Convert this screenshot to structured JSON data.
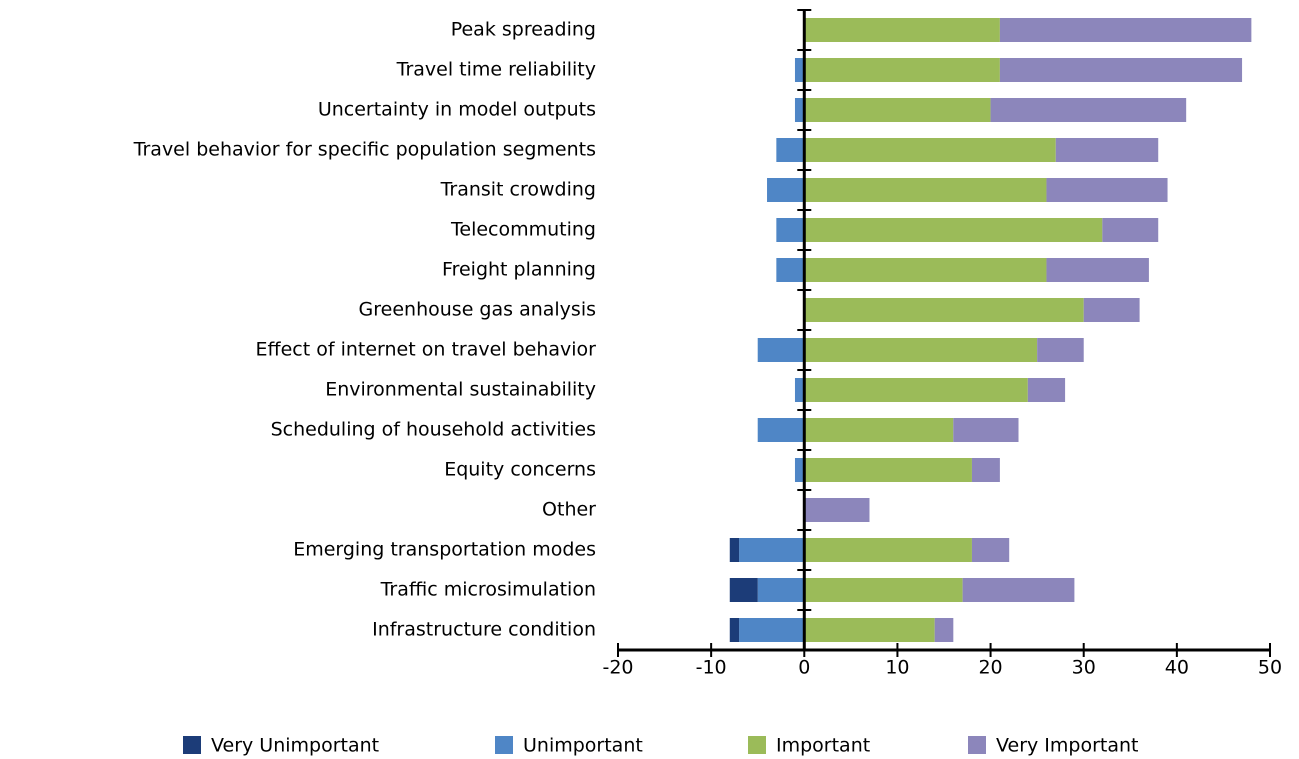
{
  "chart_data": {
    "type": "diverging_bar",
    "categories": [
      "Peak spreading",
      "Travel time reliability",
      "Uncertainty in model outputs",
      "Travel behavior for specific population segments",
      "Transit crowding",
      "Telecommuting",
      "Freight planning",
      "Greenhouse gas analysis",
      "Effect of internet on travel behavior",
      "Environmental sustainability",
      "Scheduling of household activities",
      "Equity concerns",
      "Other",
      "Emerging transportation modes ",
      "Traffic microsimulation",
      "Infrastructure condition"
    ],
    "series": [
      {
        "name": "Very Unimportant",
        "color": "#1c3c78",
        "values": [
          0,
          0,
          0,
          0,
          0,
          0,
          0,
          0,
          0,
          0,
          0,
          0,
          0,
          -1,
          -3,
          -1
        ]
      },
      {
        "name": "Unimportant",
        "color": "#4f86c6",
        "values": [
          0,
          -1,
          -1,
          -3,
          -4,
          -3,
          -3,
          0,
          -5,
          -1,
          -5,
          -1,
          0,
          -7,
          -5,
          -7
        ]
      },
      {
        "name": "Important",
        "color": "#9bbb59",
        "values": [
          21,
          21,
          20,
          27,
          26,
          32,
          26,
          30,
          25,
          24,
          16,
          18,
          0,
          18,
          17,
          14
        ]
      },
      {
        "name": "Very Important",
        "color": "#8c86bb",
        "values": [
          27,
          26,
          21,
          11,
          13,
          6,
          11,
          6,
          5,
          4,
          7,
          3,
          7,
          4,
          12,
          2
        ]
      }
    ],
    "xlim": [
      -20,
      50
    ],
    "xticks": [
      -20,
      -10,
      0,
      10,
      20,
      30,
      40,
      50
    ],
    "legend": "bottom"
  }
}
